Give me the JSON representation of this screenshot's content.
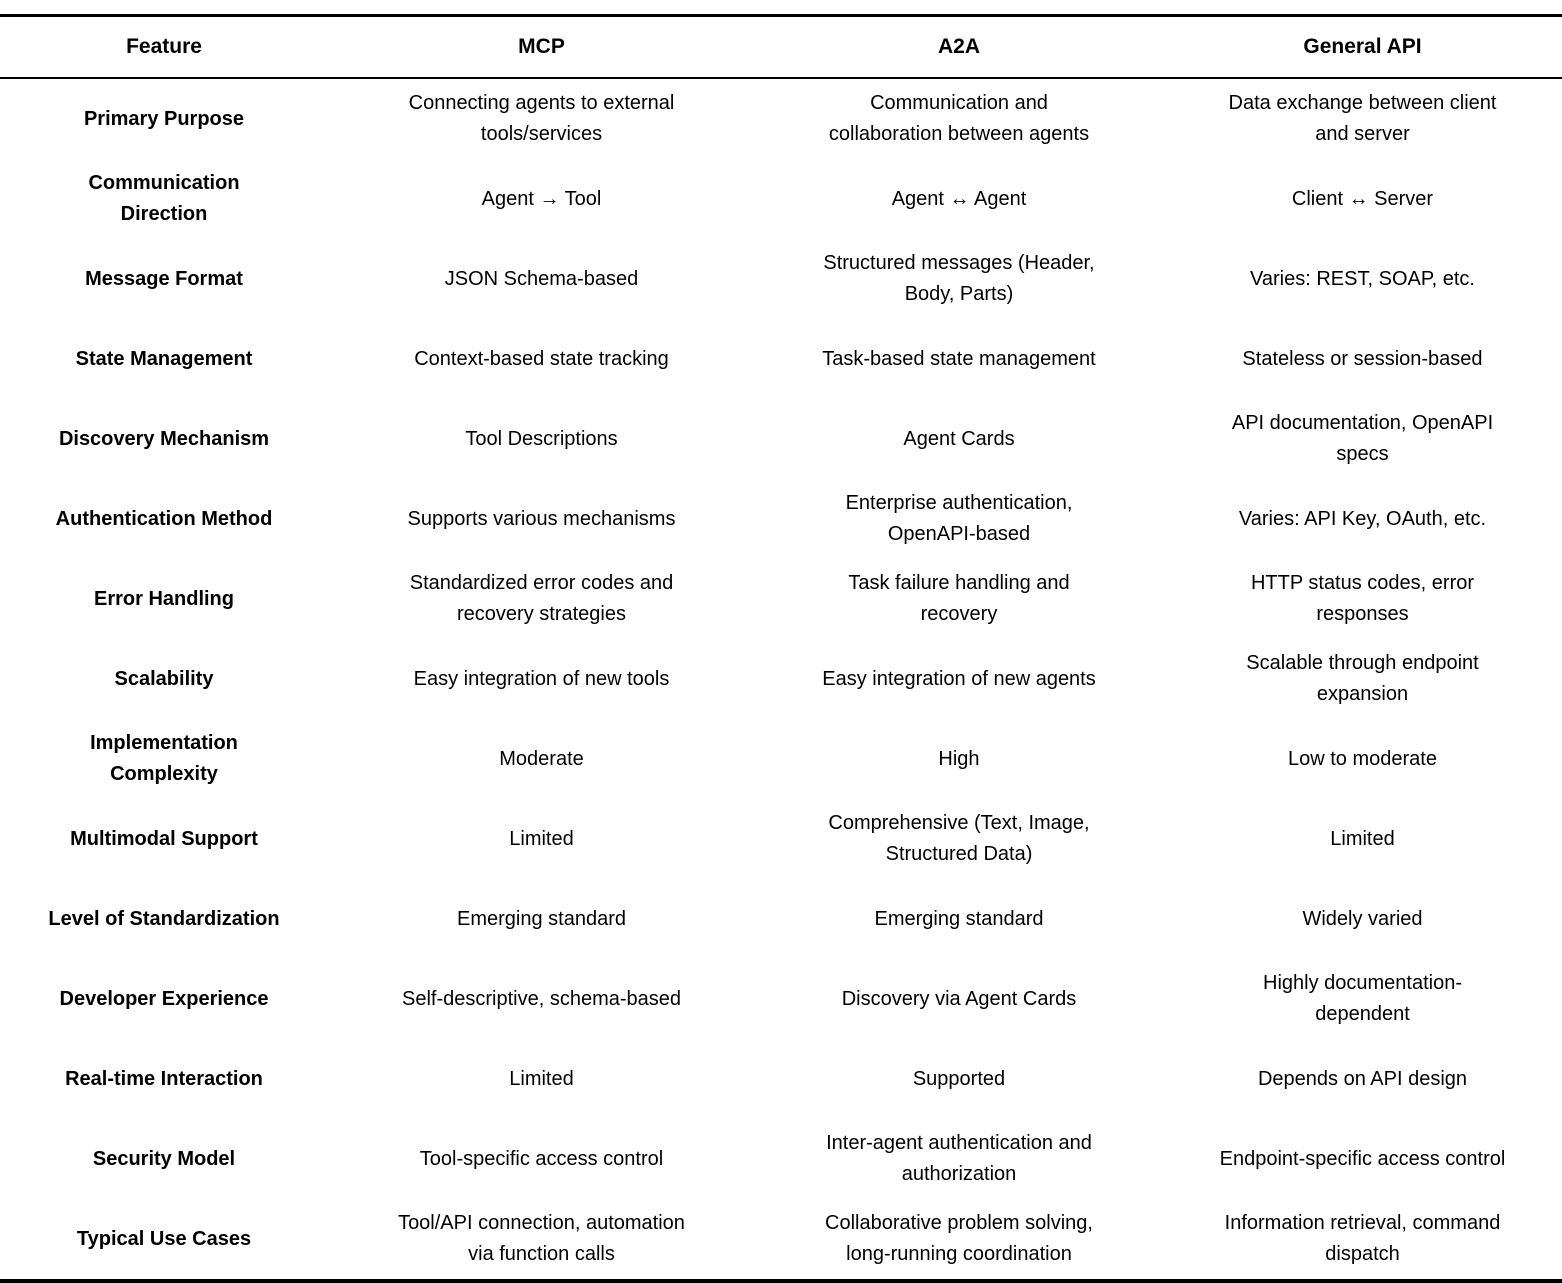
{
  "table": {
    "header": {
      "feature": "Feature",
      "mcp": "MCP",
      "a2a": "A2A",
      "api": "General API"
    },
    "rows": [
      {
        "feature": "Primary Purpose",
        "mcp": "Connecting agents to external tools/services",
        "a2a": "Communication and collaboration between agents",
        "api": "Data exchange between client and server"
      },
      {
        "feature": "Communication Direction",
        "mcp": "Agent → Tool",
        "a2a": "Agent ↔ Agent",
        "api": "Client ↔ Server"
      },
      {
        "feature": "Message Format",
        "mcp": "JSON Schema-based",
        "a2a": "Structured messages (Header, Body, Parts)",
        "api": "Varies: REST, SOAP, etc."
      },
      {
        "feature": "State Management",
        "mcp": "Context-based state tracking",
        "a2a": "Task-based state management",
        "api": "Stateless or session-based"
      },
      {
        "feature": "Discovery Mechanism",
        "mcp": "Tool Descriptions",
        "a2a": "Agent Cards",
        "api": "API documentation, OpenAPI specs"
      },
      {
        "feature": "Authentication Method",
        "mcp": "Supports various mechanisms",
        "a2a": "Enterprise authentication, OpenAPI-based",
        "api": "Varies: API Key, OAuth, etc."
      },
      {
        "feature": "Error Handling",
        "mcp": "Standardized error codes and recovery strategies",
        "a2a": "Task failure handling and recovery",
        "api": "HTTP status codes, error responses"
      },
      {
        "feature": "Scalability",
        "mcp": "Easy integration of new tools",
        "a2a": "Easy integration of new agents",
        "api": "Scalable through endpoint expansion"
      },
      {
        "feature": "Implementation Complexity",
        "mcp": "Moderate",
        "a2a": "High",
        "api": "Low to moderate"
      },
      {
        "feature": "Multimodal Support",
        "mcp": "Limited",
        "a2a": "Comprehensive (Text, Image, Structured Data)",
        "api": "Limited"
      },
      {
        "feature": "Level of Standardization",
        "mcp": "Emerging standard",
        "a2a": "Emerging standard",
        "api": "Widely varied"
      },
      {
        "feature": "Developer Experience",
        "mcp": "Self-descriptive, schema-based",
        "a2a": "Discovery via Agent Cards",
        "api": "Highly documentation-dependent"
      },
      {
        "feature": "Real-time Interaction",
        "mcp": "Limited",
        "a2a": "Supported",
        "api": "Depends on API design"
      },
      {
        "feature": "Security Model",
        "mcp": "Tool-specific access control",
        "a2a": "Inter-agent authentication and authorization",
        "api": "Endpoint-specific access control"
      },
      {
        "feature": "Typical Use Cases",
        "mcp": "Tool/API connection, automation via function calls",
        "a2a": "Collaborative problem solving, long-running coordination",
        "api": "Information retrieval, command dispatch"
      }
    ]
  }
}
